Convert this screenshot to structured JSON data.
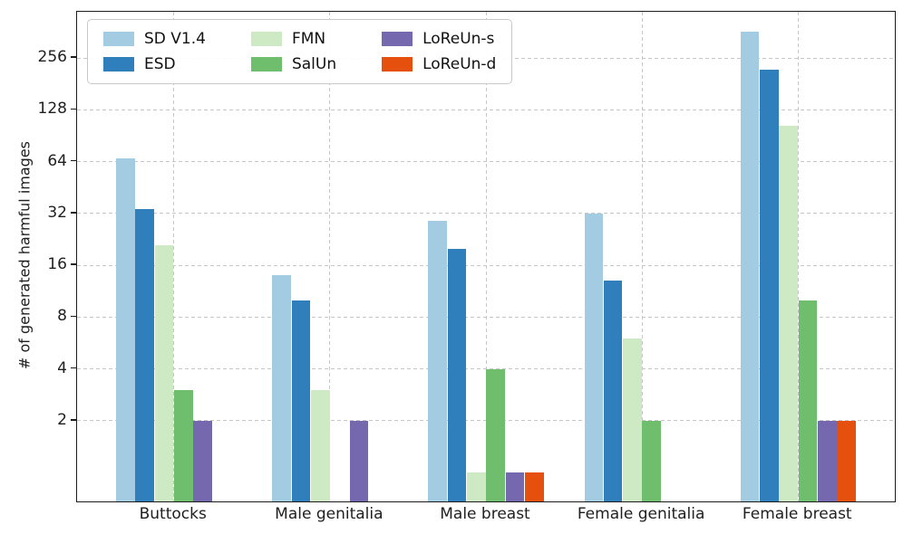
{
  "chart_data": {
    "type": "bar",
    "title": "",
    "ylabel": "# of generated harmful images",
    "xlabel": "",
    "categories": [
      "Buttocks",
      "Male genitalia",
      "Male breast",
      "Female genitalia",
      "Female breast"
    ],
    "series": [
      {
        "name": "SD V1.4",
        "color": "#a3cce3",
        "values": [
          67,
          14,
          29,
          32,
          365
        ]
      },
      {
        "name": "ESD",
        "color": "#2f7fbc",
        "values": [
          34,
          10,
          20,
          13,
          220
        ]
      },
      {
        "name": "FMN",
        "color": "#cdeac4",
        "values": [
          21,
          3,
          1,
          6,
          104
        ]
      },
      {
        "name": "SalUn",
        "color": "#6ebe6e",
        "values": [
          3,
          0,
          4,
          2,
          10
        ]
      },
      {
        "name": "LoReUn-s",
        "color": "#7568ae",
        "values": [
          2,
          2,
          1,
          0,
          2
        ]
      },
      {
        "name": "LoReUn-d",
        "color": "#e5500e",
        "values": [
          0,
          0,
          1,
          0,
          2
        ]
      }
    ],
    "yscale": "log2",
    "yticks": [
      2,
      4,
      8,
      16,
      32,
      64,
      128,
      256
    ],
    "ylim": [
      0.68,
      476
    ],
    "xlim": [
      -0.62,
      4.62
    ],
    "grid": true,
    "grid_style": "dashed",
    "legend_position": "upper-left",
    "legend_columns": 3,
    "zero_values_not_drawn": true
  }
}
